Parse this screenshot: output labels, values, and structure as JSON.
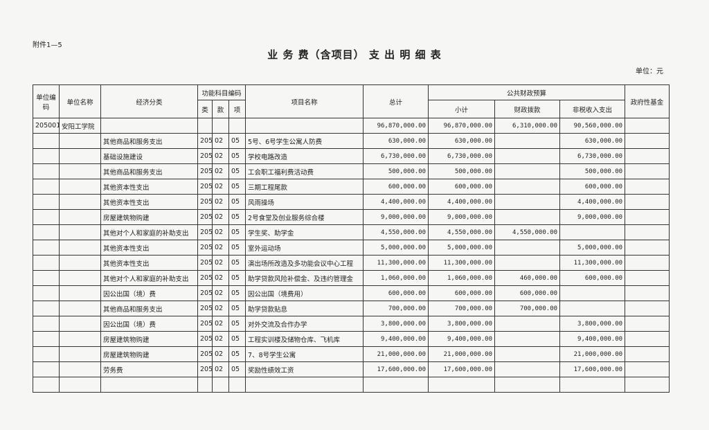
{
  "header": {
    "attachment": "附件1—5",
    "title": "业 务 费（含项目） 支 出 明 细 表",
    "unit": "单位：元"
  },
  "table": {
    "headers": {
      "code": "单位编码",
      "unit": "单位名称",
      "econ": "经济分类",
      "func": "功能科目编码",
      "lei": "类",
      "kuan": "款",
      "xiang": "项",
      "project": "项目名称",
      "total": "总计",
      "public": "公共财政预算",
      "subtotal": "小计",
      "fiscal": "财政拨款",
      "nontax": "非税收入支出",
      "fund": "政府性基金"
    },
    "rows": [
      {
        "code": "205001",
        "unit": "安阳工学院",
        "total": "96,870,000.00",
        "subtotal": "96,870,000.00",
        "fiscal": "6,310,000.00",
        "nontax": "90,560,000.00"
      },
      {
        "econ": "其他商品和服务支出",
        "lei": "205",
        "kuan": "02",
        "xiang": "05",
        "project": "5号、6号学生公寓人防费",
        "total": "630,000.00",
        "subtotal": "630,000.00",
        "nontax": "630,000.00"
      },
      {
        "econ": "基础设施建设",
        "lei": "205",
        "kuan": "02",
        "xiang": "05",
        "project": "学校电路改造",
        "total": "6,730,000.00",
        "subtotal": "6,730,000.00",
        "nontax": "6,730,000.00"
      },
      {
        "econ": "其他商品和服务支出",
        "lei": "205",
        "kuan": "02",
        "xiang": "05",
        "project": "工会职工福利费活动费",
        "total": "500,000.00",
        "subtotal": "500,000.00",
        "nontax": "500,000.00"
      },
      {
        "econ": "其他资本性支出",
        "lei": "205",
        "kuan": "02",
        "xiang": "05",
        "project": "三期工程尾款",
        "total": "600,000.00",
        "subtotal": "600,000.00",
        "nontax": "600,000.00"
      },
      {
        "econ": "其他资本性支出",
        "lei": "205",
        "kuan": "02",
        "xiang": "05",
        "project": "风雨操场",
        "total": "4,400,000.00",
        "subtotal": "4,400,000.00",
        "nontax": "4,400,000.00"
      },
      {
        "econ": "房屋建筑物购建",
        "lei": "205",
        "kuan": "02",
        "xiang": "05",
        "project": "2号食堂及创业服务综合楼",
        "total": "9,000,000.00",
        "subtotal": "9,000,000.00",
        "nontax": "9,000,000.00"
      },
      {
        "econ": "其他对个人和家庭的补助支出",
        "lei": "205",
        "kuan": "02",
        "xiang": "05",
        "project": "学生奖、助学金",
        "total": "4,550,000.00",
        "subtotal": "4,550,000.00",
        "fiscal": "4,550,000.00"
      },
      {
        "econ": "其他资本性支出",
        "lei": "205",
        "kuan": "02",
        "xiang": "05",
        "project": "室外运动场",
        "total": "5,000,000.00",
        "subtotal": "5,000,000.00",
        "nontax": "5,000,000.00"
      },
      {
        "econ": "其他资本性支出",
        "lei": "205",
        "kuan": "02",
        "xiang": "05",
        "project": "演出场所改造及多功能会议中心工程",
        "total": "11,300,000.00",
        "subtotal": "11,300,000.00",
        "nontax": "11,300,000.00"
      },
      {
        "econ": "其他对个人和家庭的补助支出",
        "lei": "205",
        "kuan": "02",
        "xiang": "05",
        "project": "助学贷款风险补偿金、及违约管理金",
        "total": "1,060,000.00",
        "subtotal": "1,060,000.00",
        "fiscal": "460,000.00",
        "nontax": "600,000.00"
      },
      {
        "econ": "因公出国（境）费",
        "lei": "205",
        "kuan": "02",
        "xiang": "05",
        "project": "因公出国（境费用）",
        "total": "600,000.00",
        "subtotal": "600,000.00",
        "fiscal": "600,000.00"
      },
      {
        "econ": "其他商品和服务支出",
        "lei": "205",
        "kuan": "02",
        "xiang": "05",
        "project": "助学贷款贴息",
        "total": "700,000.00",
        "subtotal": "700,000.00",
        "fiscal": "700,000.00"
      },
      {
        "econ": "因公出国（境）费",
        "lei": "205",
        "kuan": "02",
        "xiang": "05",
        "project": "对外交流及合作办学",
        "total": "3,800,000.00",
        "subtotal": "3,800,000.00",
        "nontax": "3,800,000.00"
      },
      {
        "econ": "房屋建筑物购建",
        "lei": "205",
        "kuan": "02",
        "xiang": "05",
        "project": "工程实训楼及储物仓库、飞机库",
        "total": "9,400,000.00",
        "subtotal": "9,400,000.00",
        "nontax": "9,400,000.00"
      },
      {
        "econ": "房屋建筑物购建",
        "lei": "205",
        "kuan": "02",
        "xiang": "05",
        "project": "7、8号学生公寓",
        "total": "21,000,000.00",
        "subtotal": "21,000,000.00",
        "nontax": "21,000,000.00"
      },
      {
        "econ": "劳务费",
        "lei": "205",
        "kuan": "02",
        "xiang": "05",
        "project": "奖励性绩效工资",
        "total": "17,600,000.00",
        "subtotal": "17,600,000.00",
        "nontax": "17,600,000.00"
      },
      {}
    ]
  }
}
